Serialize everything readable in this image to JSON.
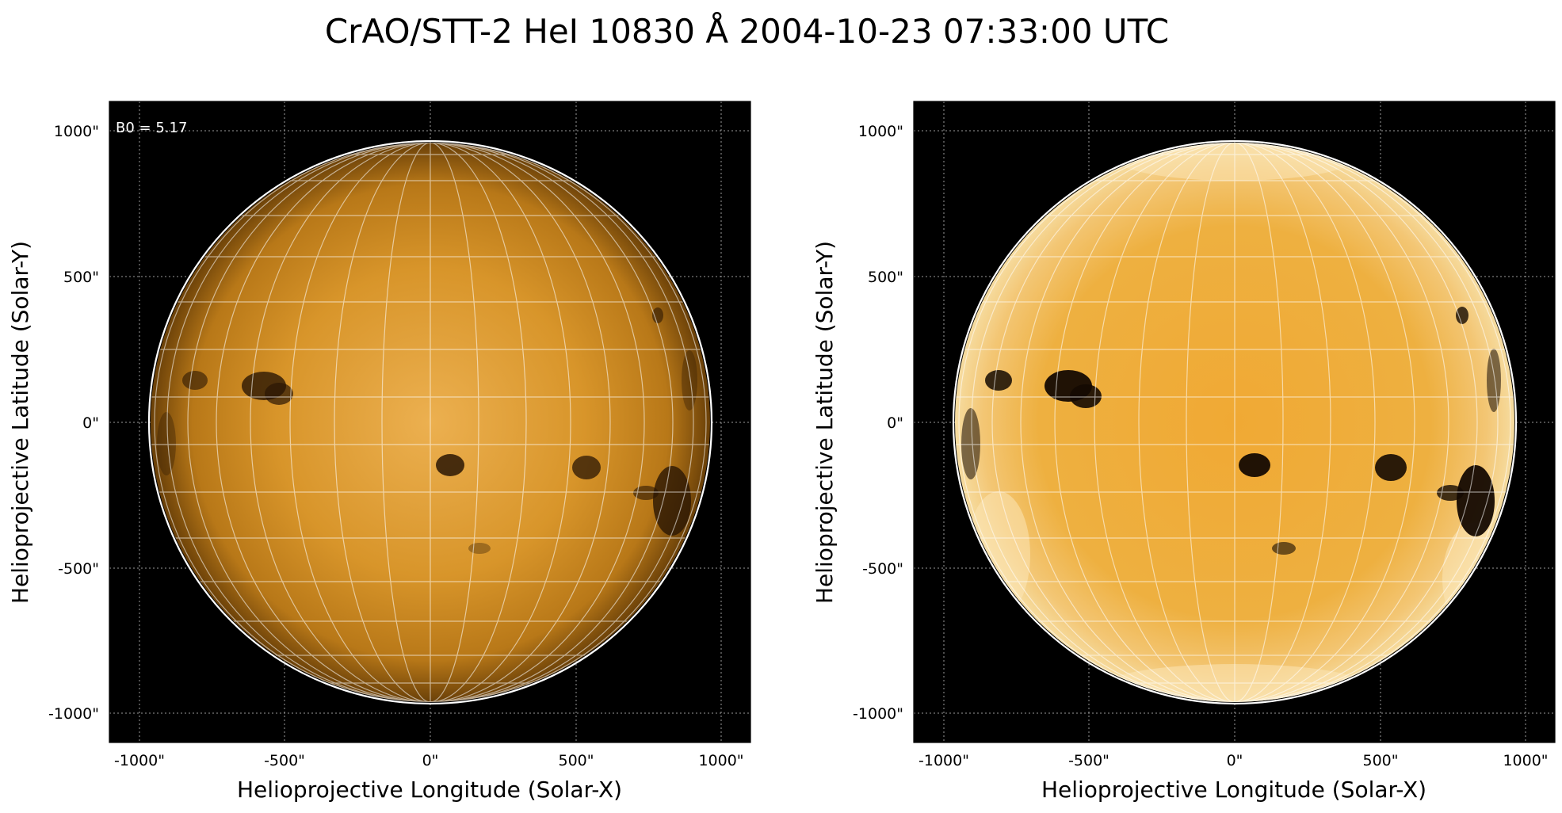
{
  "title": "CrAO/STT-2 HeI 10830 Å 2004-10-23 07:33:00 UTC",
  "colors": {
    "background": "#000000",
    "disk_base": "#d98c14",
    "grid": "#ffffff"
  },
  "panels": [
    {
      "id": "left",
      "annotation": "B0 = 5.17",
      "xlabel": "Helioprojective Longitude (Solar-X)",
      "ylabel": "Helioprojective Latitude (Solar-Y)",
      "x_ticks": [
        "-1000\"",
        "-500\"",
        "0\"",
        "500\"",
        "1000\""
      ],
      "y_ticks": [
        "1000\"",
        "500\"",
        "0\"",
        "-500\"",
        "-1000\""
      ],
      "contrast": "normal"
    },
    {
      "id": "right",
      "annotation": "",
      "xlabel": "Helioprojective Longitude (Solar-X)",
      "ylabel": "Helioprojective Latitude (Solar-Y)",
      "x_ticks": [
        "-1000\"",
        "-500\"",
        "0\"",
        "500\"",
        "1000\""
      ],
      "y_ticks": [
        "1000\"",
        "500\"",
        "0\"",
        "-500\"",
        "-1000\""
      ],
      "contrast": "enhanced"
    }
  ]
}
